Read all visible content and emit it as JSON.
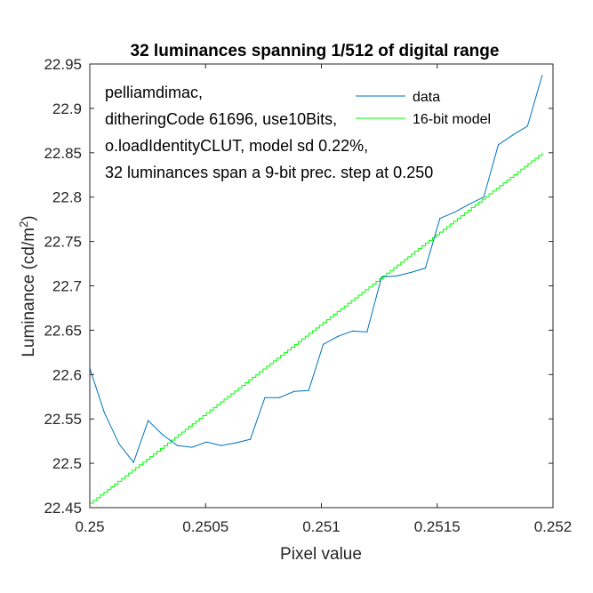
{
  "chart_data": {
    "type": "line",
    "title": "32 luminances spanning 1/512 of digital range",
    "xlabel": "Pixel value",
    "ylabel_main": "Luminance (cd/m",
    "ylabel_sup": "2",
    "ylabel_end": ")",
    "xlim": [
      0.25,
      0.252
    ],
    "ylim": [
      22.45,
      22.95
    ],
    "xticks": [
      0.25,
      0.2505,
      0.251,
      0.2515,
      0.252
    ],
    "xtick_labels": [
      "0.25",
      "0.2505",
      "0.251",
      "0.2515",
      "0.252"
    ],
    "yticks": [
      22.45,
      22.5,
      22.55,
      22.6,
      22.65,
      22.7,
      22.75,
      22.8,
      22.85,
      22.9,
      22.95
    ],
    "ytick_labels": [
      "22.45",
      "22.5",
      "22.55",
      "22.6",
      "22.65",
      "22.7",
      "22.75",
      "22.8",
      "22.85",
      "22.9",
      "22.95"
    ],
    "annotation_lines": [
      "pelliamdimac,",
      "ditheringCode 61696, use10Bits,",
      "o.loadIdentityCLUT, model sd 0.22%,",
      "32 luminances span a 9-bit prec. step at 0.250"
    ],
    "legend_position": "top-right",
    "series": [
      {
        "name": "data",
        "color": "#0072bd",
        "style": "line",
        "x": [
          0.25,
          0.250063,
          0.250126,
          0.250189,
          0.250252,
          0.250315,
          0.250378,
          0.250441,
          0.250504,
          0.250567,
          0.25063,
          0.250693,
          0.250756,
          0.250819,
          0.250882,
          0.250945,
          0.251008,
          0.251071,
          0.251134,
          0.251197,
          0.25126,
          0.251323,
          0.251386,
          0.251449,
          0.251512,
          0.251575,
          0.251638,
          0.251701,
          0.251764,
          0.251827,
          0.25189,
          0.251953
        ],
        "values": [
          22.607,
          22.557,
          22.522,
          22.501,
          22.548,
          22.532,
          22.52,
          22.518,
          22.524,
          22.52,
          22.523,
          22.527,
          22.574,
          22.574,
          22.581,
          22.582,
          22.634,
          22.643,
          22.649,
          22.648,
          22.71,
          22.711,
          22.715,
          22.72,
          22.776,
          22.783,
          22.792,
          22.8,
          22.859,
          22.87,
          22.88,
          22.937
        ]
      },
      {
        "name": "16-bit model",
        "color": "#00ff00",
        "style": "staircase",
        "x": [
          0.25,
          0.251953
        ],
        "values": [
          22.455,
          22.85
        ],
        "step_x": 1.52588e-05
      }
    ]
  }
}
